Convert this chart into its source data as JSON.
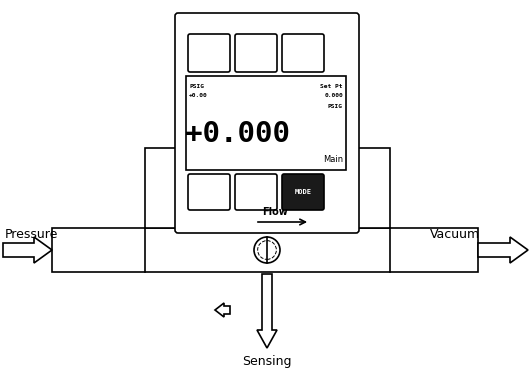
{
  "bg_color": "#ffffff",
  "line_color": "#000000",
  "pressure_label": "Pressure",
  "vacuum_label": "Vacuum",
  "sensing_label": "Sensing",
  "flow_label": "Flow",
  "display_main": "+0.000",
  "display_psig_top_left": "PSIG",
  "display_val_top_left": "+0.00",
  "display_set_pt": "Set Pt",
  "display_set_val": "0.000",
  "display_psig_right": "PSIG",
  "display_main_label": "Main",
  "mode_label": "MODE"
}
